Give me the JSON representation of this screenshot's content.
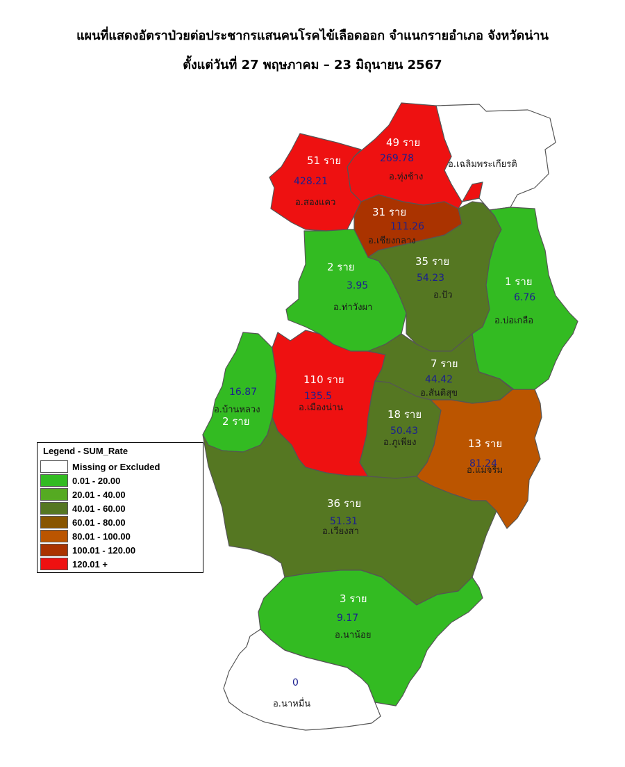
{
  "title_line1": "แผนที่แสดงอัตราป่วยต่อประชากรแสนคนโรคไข้เลือดออก จำแนกรายอำเภอ จังหวัดน่าน",
  "title_line2": "ตั้งแต่วันที่ 27 พฤษภาคม – 23 มิถุนายน 2567",
  "legend": {
    "title": "Legend - SUM_Rate",
    "items": [
      {
        "label": "Missing or Excluded",
        "color": "#ffffff"
      },
      {
        "label": "0.01 - 20.00",
        "color": "#33bb22"
      },
      {
        "label": "20.01 - 40.00",
        "color": "#55aa22"
      },
      {
        "label": "40.01 - 60.00",
        "color": "#557722"
      },
      {
        "label": "60.01 - 80.00",
        "color": "#885500"
      },
      {
        "label": "80.01 - 100.00",
        "color": "#bb5500"
      },
      {
        "label": "100.01 - 120.00",
        "color": "#aa3300"
      },
      {
        "label": "120.01 +",
        "color": "#ee1111"
      }
    ]
  },
  "districts": [
    {
      "id": "chaloem-phra-kiat",
      "name": "อ.เฉลิมพระเกียรติ",
      "cases": "",
      "rate": "",
      "color": "#ffffff"
    },
    {
      "id": "thung-chang",
      "name": "อ.ทุ่งช้าง",
      "cases": "49 ราย",
      "rate": "269.78",
      "color": "#ee1111"
    },
    {
      "id": "song-khwae",
      "name": "อ.สองแคว",
      "cases": "51 ราย",
      "rate": "428.21",
      "color": "#ee1111"
    },
    {
      "id": "chiang-klang",
      "name": "อ.เชียงกลาง",
      "cases": "31 ราย",
      "rate": "111.26",
      "color": "#aa3300"
    },
    {
      "id": "tha-wang-pha",
      "name": "อ.ท่าวังผา",
      "cases": "2 ราย",
      "rate": "3.95",
      "color": "#33bb22"
    },
    {
      "id": "pua",
      "name": "อ.ปัว",
      "cases": "35 ราย",
      "rate": "54.23",
      "color": "#557722"
    },
    {
      "id": "bo-kluea",
      "name": "อ.บ่อเกลือ",
      "cases": "1 ราย",
      "rate": "6.76",
      "color": "#33bb22"
    },
    {
      "id": "ban-luang",
      "name": "อ.บ้านหลวง",
      "cases": "2 ราย",
      "rate": "16.87",
      "color": "#33bb22"
    },
    {
      "id": "mueang-nan",
      "name": "อ.เมืองน่าน",
      "cases": "110 ราย",
      "rate": "135.5",
      "color": "#ee1111"
    },
    {
      "id": "santi-suk",
      "name": "อ.สันติสุข",
      "cases": "7 ราย",
      "rate": "44.42",
      "color": "#557722"
    },
    {
      "id": "phu-phiang",
      "name": "อ.ภูเพียง",
      "cases": "18 ราย",
      "rate": "50.43",
      "color": "#557722"
    },
    {
      "id": "mae-charim",
      "name": "อ.แม่จริม",
      "cases": "13 ราย",
      "rate": "81.24",
      "color": "#bb5500"
    },
    {
      "id": "wiang-sa",
      "name": "อ.เวียงสา",
      "cases": "36 ราย",
      "rate": "51.31",
      "color": "#557722"
    },
    {
      "id": "na-noi",
      "name": "อ.นาน้อย",
      "cases": "3 ราย",
      "rate": "9.17",
      "color": "#33bb22"
    },
    {
      "id": "na-muen",
      "name": "อ.นาหมื่น",
      "cases": "",
      "rate": "0",
      "color": "#ffffff"
    }
  ]
}
